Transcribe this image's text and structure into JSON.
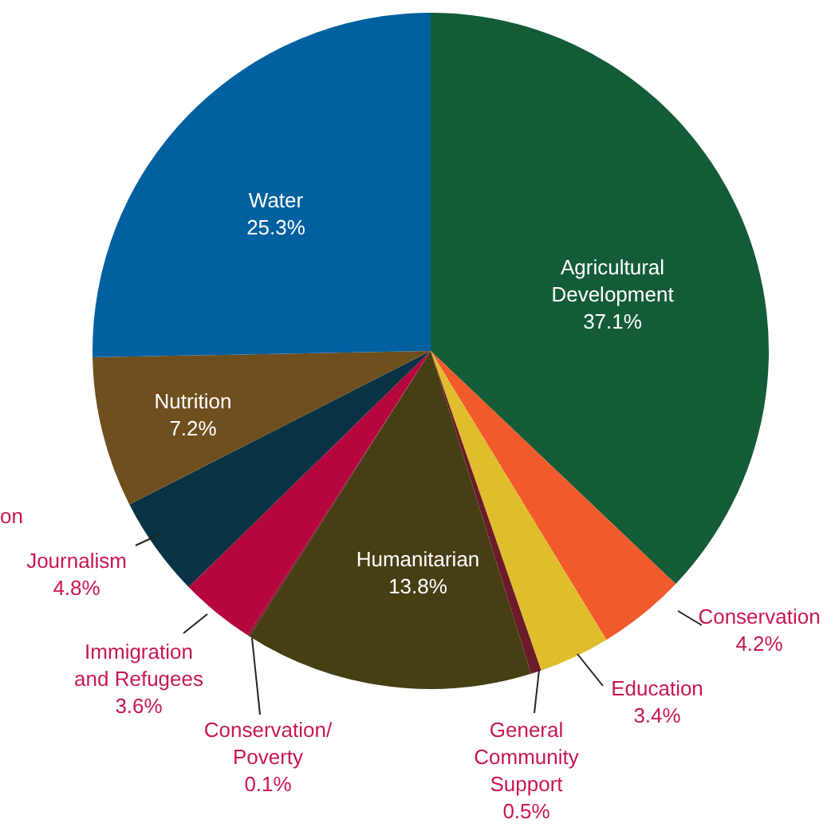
{
  "chart_data": {
    "type": "pie",
    "categories": [
      "Agricultural\nDevelopment",
      "Conservation",
      "Education",
      "General\nCommunity\nSupport",
      "Humanitarian",
      "Conservation/\nPoverty",
      "Immigration\nand Refugees",
      "Journalism",
      "Nutrition",
      "Water"
    ],
    "values": [
      37.1,
      4.2,
      3.4,
      0.5,
      13.8,
      0.1,
      3.6,
      4.8,
      7.2,
      25.3
    ],
    "value_labels": [
      "37.1%",
      "4.2%",
      "3.4%",
      "0.5%",
      "13.8%",
      "0.1%",
      "3.6%",
      "4.8%",
      "7.2%",
      "25.3%"
    ],
    "colors": [
      "#145c38",
      "#f15a2b",
      "#e0bd2c",
      "#6b1b2a",
      "#463f14",
      "#7a1c2e",
      "#b5073e",
      "#083344",
      "#704f1e",
      "#0060a0"
    ],
    "annotations": [
      "on"
    ],
    "legend": false
  }
}
